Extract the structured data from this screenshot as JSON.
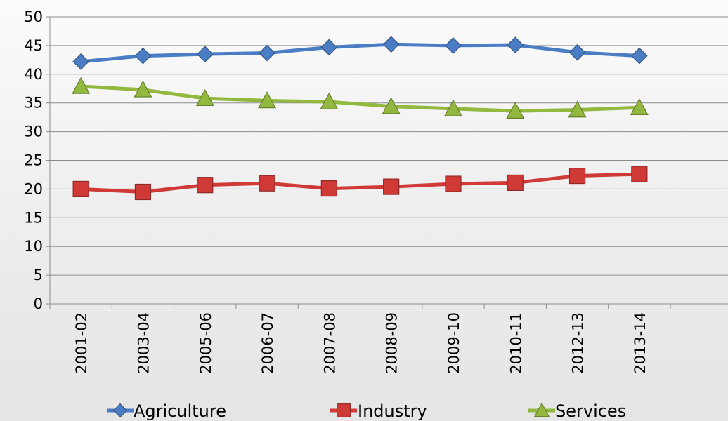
{
  "chart_data": {
    "type": "line",
    "categories": [
      "2001-02",
      "2003-04",
      "2005-06",
      "2006-07",
      "2007-08",
      "2008-09",
      "2009-10",
      "2010-11",
      "2012-13",
      "2013-14"
    ],
    "ylim": [
      0,
      50
    ],
    "yticks": [
      0,
      5,
      10,
      15,
      20,
      25,
      30,
      35,
      40,
      45,
      50
    ],
    "grid": true,
    "legend_position": "bottom",
    "series": [
      {
        "name": "Agriculture",
        "marker": "diamond",
        "color": "#4a7dc4",
        "values": [
          42.2,
          43.2,
          43.5,
          43.7,
          44.7,
          45.2,
          45.0,
          45.1,
          43.8,
          43.2
        ]
      },
      {
        "name": "Industry",
        "marker": "square",
        "color": "#cf3a37",
        "values": [
          20.0,
          19.5,
          20.7,
          21.0,
          20.1,
          20.4,
          20.9,
          21.1,
          22.3,
          22.6
        ]
      },
      {
        "name": "Services",
        "marker": "triangle",
        "color": "#93b83f",
        "values": [
          37.9,
          37.3,
          35.8,
          35.4,
          35.2,
          34.4,
          34.0,
          33.6,
          33.8,
          34.2
        ]
      }
    ]
  }
}
